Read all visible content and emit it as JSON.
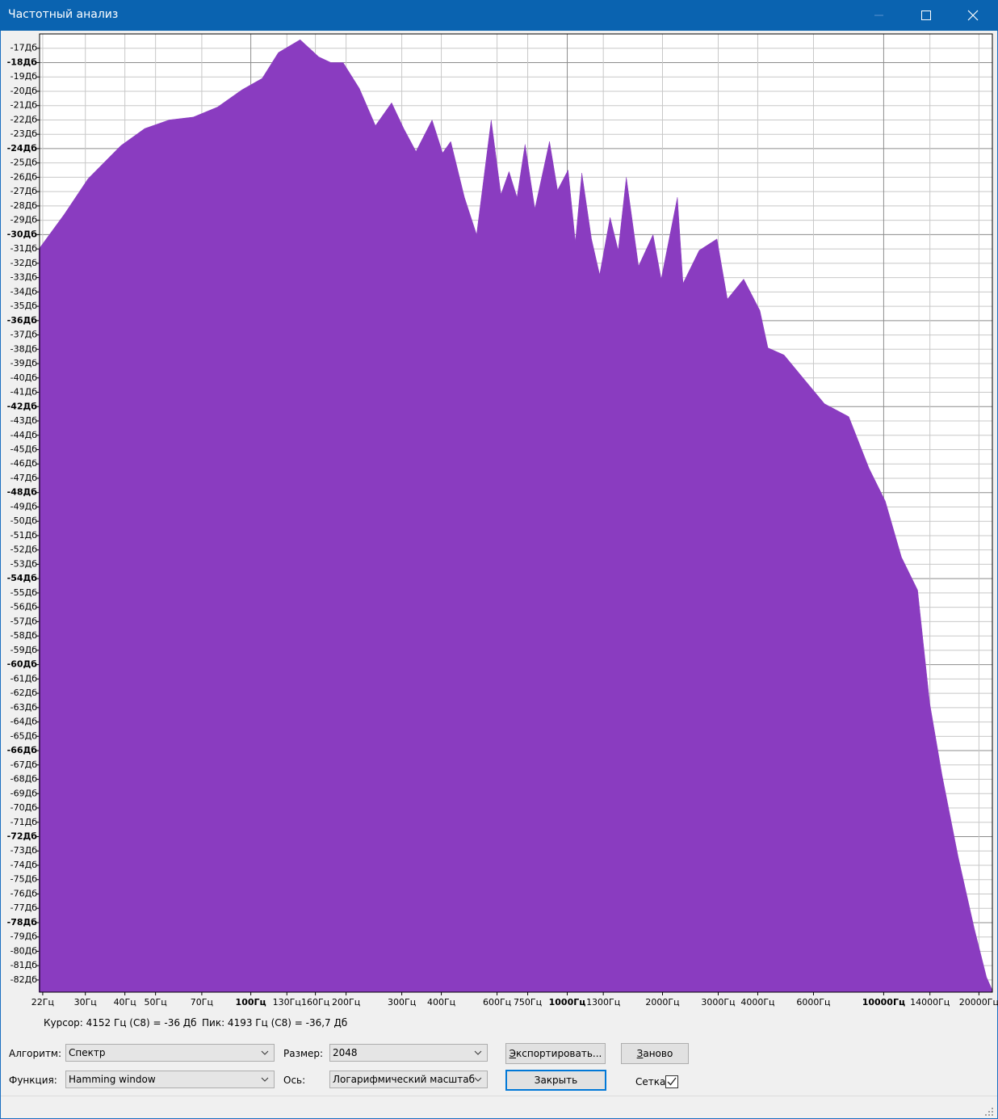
{
  "window": {
    "title": "Частотный анализ"
  },
  "chart_data": {
    "type": "area",
    "xscale": "log",
    "grid": true,
    "color": "#8a3cc0",
    "xlim": [
      21.5,
      22050
    ],
    "ylim": [
      -82.85,
      -16
    ],
    "x": [
      21.4,
      25.7,
      30.6,
      38.8,
      46.2,
      55.2,
      65.8,
      78.5,
      93.7,
      108.6,
      122.2,
      143.2,
      164.0,
      179.2,
      195.8,
      220.3,
      247.7,
      278.6,
      304.3,
      332.6,
      374.0,
      403.8,
      428.4,
      473.3,
      517.1,
      575.0,
      617.3,
      654.7,
      693.8,
      735.7,
      790.2,
      878.9,
      931.9,
      1006,
      1061,
      1112,
      1193,
      1266,
      1366,
      1449,
      1537,
      1680,
      1867,
      1981,
      2229,
      2322,
      2612,
      2973,
      3207,
      3610,
      4063,
      4307,
      4845,
      5610,
      6501,
      7757,
      8987,
      10120,
      11380,
      12800,
      13980,
      15290,
      17190,
      19330,
      21130,
      22030
    ],
    "values": [
      -31.0,
      -28.6,
      -26.1,
      -23.8,
      -22.6,
      -22.0,
      -21.8,
      -21.1,
      -19.9,
      -19.1,
      -17.3,
      -16.4,
      -17.6,
      -18.0,
      -18.0,
      -19.8,
      -22.4,
      -20.8,
      -22.6,
      -24.2,
      -22.0,
      -24.3,
      -23.5,
      -27.4,
      -30.0,
      -22.0,
      -27.2,
      -25.6,
      -27.4,
      -23.7,
      -28.2,
      -23.5,
      -26.9,
      -25.5,
      -30.5,
      -25.7,
      -30.3,
      -32.8,
      -28.8,
      -31.1,
      -26.0,
      -32.2,
      -30.0,
      -33.1,
      -27.4,
      -33.4,
      -31.1,
      -30.3,
      -34.5,
      -33.1,
      -35.3,
      -37.9,
      -38.4,
      -40.1,
      -41.8,
      -42.7,
      -46.3,
      -48.6,
      -52.5,
      -54.8,
      -62.7,
      -67.7,
      -73.4,
      -78.4,
      -81.8,
      -82.7
    ],
    "xticks": [
      {
        "value": 22,
        "label": "22Гц"
      },
      {
        "value": 30,
        "label": "30Гц"
      },
      {
        "value": 40,
        "label": "40Гц"
      },
      {
        "value": 50,
        "label": "50Гц"
      },
      {
        "value": 70,
        "label": "70Гц"
      },
      {
        "value": 100,
        "label": "100Гц"
      },
      {
        "value": 130,
        "label": "130Гц"
      },
      {
        "value": 160,
        "label": "160Гц"
      },
      {
        "value": 200,
        "label": "200Гц"
      },
      {
        "value": 300,
        "label": "300Гц"
      },
      {
        "value": 400,
        "label": "400Гц"
      },
      {
        "value": 600,
        "label": "600Гц"
      },
      {
        "value": 750,
        "label": "750Гц"
      },
      {
        "value": 1000,
        "label": "1000Гц"
      },
      {
        "value": 1300,
        "label": "1300Гц"
      },
      {
        "value": 2000,
        "label": "2000Гц"
      },
      {
        "value": 3000,
        "label": "3000Гц"
      },
      {
        "value": 4000,
        "label": "4000Гц"
      },
      {
        "value": 6000,
        "label": "6000Гц"
      },
      {
        "value": 10000,
        "label": "10000Гц"
      },
      {
        "value": 14000,
        "label": "14000Гц"
      },
      {
        "value": 20000,
        "label": "20000Гц"
      }
    ],
    "yticks": [
      {
        "value": -17,
        "label": "-17Дб"
      },
      {
        "value": -18,
        "label": "-18Дб"
      },
      {
        "value": -19,
        "label": "-19Дб"
      },
      {
        "value": -20,
        "label": "-20Дб"
      },
      {
        "value": -21,
        "label": "-21Дб"
      },
      {
        "value": -22,
        "label": "-22Дб"
      },
      {
        "value": -23,
        "label": "-23Дб"
      },
      {
        "value": -24,
        "label": "-24Дб"
      },
      {
        "value": -25,
        "label": "-25Дб"
      },
      {
        "value": -26,
        "label": "-26Дб"
      },
      {
        "value": -27,
        "label": "-27Дб"
      },
      {
        "value": -28,
        "label": "-28Дб"
      },
      {
        "value": -29,
        "label": "-29Дб"
      },
      {
        "value": -30,
        "label": "-30Дб"
      },
      {
        "value": -31,
        "label": "-31Дб"
      },
      {
        "value": -32,
        "label": "-32Дб"
      },
      {
        "value": -33,
        "label": "-33Дб"
      },
      {
        "value": -34,
        "label": "-34Дб"
      },
      {
        "value": -35,
        "label": "-35Дб"
      },
      {
        "value": -36,
        "label": "-36Дб"
      },
      {
        "value": -37,
        "label": "-37Дб"
      },
      {
        "value": -38,
        "label": "-38Дб"
      },
      {
        "value": -39,
        "label": "-39Дб"
      },
      {
        "value": -40,
        "label": "-40Дб"
      },
      {
        "value": -41,
        "label": "-41Дб"
      },
      {
        "value": -42,
        "label": "-42Дб"
      },
      {
        "value": -43,
        "label": "-43Дб"
      },
      {
        "value": -44,
        "label": "-44Дб"
      },
      {
        "value": -45,
        "label": "-45Дб"
      },
      {
        "value": -46,
        "label": "-46Дб"
      },
      {
        "value": -47,
        "label": "-47Дб"
      },
      {
        "value": -48,
        "label": "-48Дб"
      },
      {
        "value": -49,
        "label": "-49Дб"
      },
      {
        "value": -50,
        "label": "-50Дб"
      },
      {
        "value": -51,
        "label": "-51Дб"
      },
      {
        "value": -52,
        "label": "-52Дб"
      },
      {
        "value": -53,
        "label": "-53Дб"
      },
      {
        "value": -54,
        "label": "-54Дб"
      },
      {
        "value": -55,
        "label": "-55Дб"
      },
      {
        "value": -56,
        "label": "-56Дб"
      },
      {
        "value": -57,
        "label": "-57Дб"
      },
      {
        "value": -58,
        "label": "-58Дб"
      },
      {
        "value": -59,
        "label": "-59Дб"
      },
      {
        "value": -60,
        "label": "-60Дб"
      },
      {
        "value": -61,
        "label": "-61Дб"
      },
      {
        "value": -62,
        "label": "-62Дб"
      },
      {
        "value": -63,
        "label": "-63Дб"
      },
      {
        "value": -64,
        "label": "-64Дб"
      },
      {
        "value": -65,
        "label": "-65Дб"
      },
      {
        "value": -66,
        "label": "-66Дб"
      },
      {
        "value": -67,
        "label": "-67Дб"
      },
      {
        "value": -68,
        "label": "-68Дб"
      },
      {
        "value": -69,
        "label": "-69Дб"
      },
      {
        "value": -70,
        "label": "-70Дб"
      },
      {
        "value": -71,
        "label": "-71Дб"
      },
      {
        "value": -72,
        "label": "-72Дб"
      },
      {
        "value": -73,
        "label": "-73Дб"
      },
      {
        "value": -74,
        "label": "-74Дб"
      },
      {
        "value": -75,
        "label": "-75Дб"
      },
      {
        "value": -76,
        "label": "-76Дб"
      },
      {
        "value": -77,
        "label": "-77Дб"
      },
      {
        "value": -78,
        "label": "-78Дб"
      },
      {
        "value": -79,
        "label": "-79Дб"
      },
      {
        "value": -80,
        "label": "-80Дб"
      },
      {
        "value": -81,
        "label": "-81Дб"
      },
      {
        "value": -82,
        "label": "-82Дб"
      }
    ]
  },
  "status": {
    "cursor": "Курсор: 4152 Гц (C8) = -36 Дб",
    "peak": "Пик: 4193 Гц (C8) = -36,7 Дб"
  },
  "controls": {
    "algorithm_label": "Алгоритм:",
    "algorithm": "Спектр",
    "size_label": "Размер:",
    "size": "2048",
    "function_label": "Функция:",
    "function": "Hamming window",
    "axis_label": "Ось:",
    "axis": "Логарифмический масштаб",
    "export": "Экспортировать...",
    "redo": "Заново",
    "close": "Закрыть",
    "grid_label": "Сетка"
  }
}
